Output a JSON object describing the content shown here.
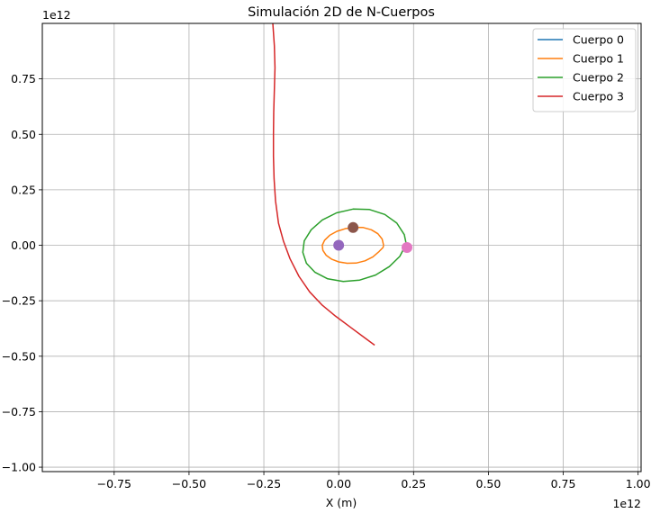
{
  "chart_data": {
    "type": "line",
    "title": "Simulación 2D de N-Cuerpos",
    "xlabel": "X (m)",
    "ylabel": "",
    "x_offset_text": "1e12",
    "y_offset_text": "1e12",
    "xlim": [
      -0.99,
      1.01
    ],
    "ylim": [
      -1.02,
      1.0
    ],
    "xticks": [
      -0.75,
      -0.5,
      -0.25,
      0.0,
      0.25,
      0.5,
      0.75,
      1.0
    ],
    "yticks": [
      -1.0,
      -0.75,
      -0.5,
      -0.25,
      0.0,
      0.25,
      0.5,
      0.75
    ],
    "xtick_labels": [
      "−0.75",
      "−0.50",
      "−0.25",
      "0.00",
      "0.25",
      "0.50",
      "0.75",
      "1.00"
    ],
    "ytick_labels": [
      "−1.00",
      "−0.75",
      "−0.50",
      "−0.25",
      "0.00",
      "0.25",
      "0.50",
      "0.75"
    ],
    "grid": true,
    "legend_position": "top-right",
    "series": [
      {
        "name": "Cuerpo 0",
        "color": "#1f77b4",
        "x": [
          0.0,
          0.0
        ],
        "y": [
          0.0,
          0.0
        ]
      },
      {
        "name": "Cuerpo 1",
        "color": "#ff7f0e",
        "x": [
          0.15,
          0.145,
          0.131,
          0.109,
          0.082,
          0.052,
          0.023,
          -0.006,
          -0.03,
          -0.047,
          -0.055,
          -0.053,
          -0.042,
          -0.023,
          0.0,
          0.028,
          0.058,
          0.088,
          0.114,
          0.135,
          0.148,
          0.15
        ],
        "y": [
          0.0,
          0.028,
          0.052,
          0.07,
          0.08,
          0.081,
          0.075,
          0.063,
          0.045,
          0.023,
          0.0,
          -0.023,
          -0.045,
          -0.063,
          -0.075,
          -0.081,
          -0.08,
          -0.07,
          -0.052,
          -0.028,
          -0.01,
          0.0
        ]
      },
      {
        "name": "Cuerpo 2",
        "color": "#2ca02c",
        "x": [
          0.228,
          0.219,
          0.194,
          0.154,
          0.103,
          0.048,
          -0.007,
          -0.055,
          -0.092,
          -0.115,
          -0.12,
          -0.108,
          -0.079,
          -0.037,
          0.015,
          0.07,
          0.123,
          0.169,
          0.204,
          0.224,
          0.228
        ],
        "y": [
          -0.01,
          0.048,
          0.1,
          0.139,
          0.161,
          0.163,
          0.146,
          0.114,
          0.07,
          0.02,
          -0.032,
          -0.081,
          -0.122,
          -0.151,
          -0.163,
          -0.157,
          -0.134,
          -0.096,
          -0.05,
          0.002,
          -0.01
        ]
      },
      {
        "name": "Cuerpo 3",
        "color": "#d62728",
        "x": [
          -0.22,
          -0.215,
          -0.213,
          -0.215,
          -0.217,
          -0.218,
          -0.218,
          -0.216,
          -0.211,
          -0.201,
          -0.185,
          -0.163,
          -0.133,
          -0.097,
          -0.055,
          -0.01,
          0.04,
          0.09,
          0.12
        ],
        "y": [
          1.0,
          0.9,
          0.8,
          0.7,
          0.6,
          0.5,
          0.4,
          0.3,
          0.2,
          0.1,
          0.02,
          -0.06,
          -0.14,
          -0.21,
          -0.27,
          -0.32,
          -0.37,
          -0.42,
          -0.45
        ]
      }
    ],
    "markers": [
      {
        "x": 0.0,
        "y": 0.0,
        "color": "#9467bd"
      },
      {
        "x": 0.048,
        "y": 0.08,
        "color": "#8c564b"
      },
      {
        "x": 0.228,
        "y": -0.01,
        "color": "#e377c2"
      }
    ]
  }
}
